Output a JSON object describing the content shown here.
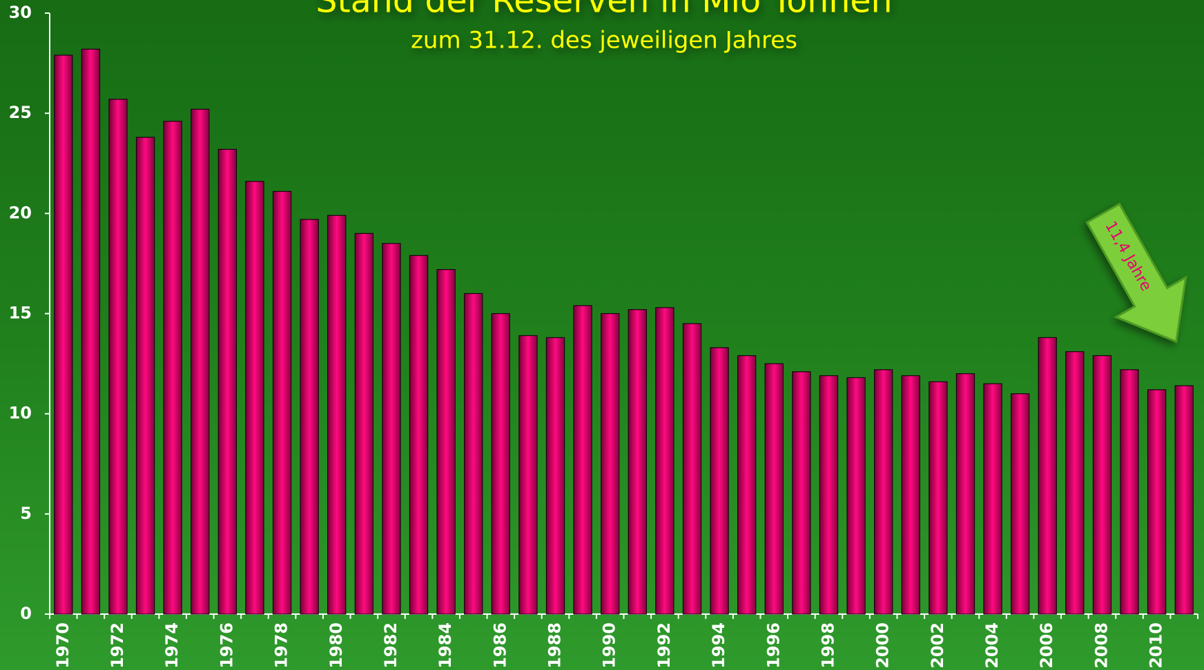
{
  "chart_data": {
    "type": "bar",
    "title": "Stand der Reserven in Mio Tonnen",
    "subtitle": "zum 31.12. des jeweiligen Jahres",
    "annotation": "11,4 Jahre",
    "categories": [
      "1970",
      null,
      "1972",
      null,
      "1974",
      null,
      "1976",
      null,
      "1978",
      null,
      "1980",
      null,
      "1982",
      null,
      "1984",
      null,
      "1986",
      null,
      "1988",
      null,
      "1990",
      null,
      "1992",
      null,
      "1994",
      null,
      "1996",
      null,
      "1998",
      null,
      "2000",
      null,
      "2002",
      null,
      "2004",
      null,
      "2006",
      null,
      "2008",
      null,
      "2010",
      null
    ],
    "values": [
      27.9,
      28.2,
      25.7,
      23.8,
      24.6,
      25.2,
      23.2,
      21.6,
      21.1,
      19.7,
      19.9,
      19.0,
      18.5,
      17.9,
      17.2,
      16.0,
      15.0,
      13.9,
      13.8,
      15.4,
      15.0,
      15.2,
      15.3,
      14.5,
      13.3,
      12.9,
      12.5,
      12.1,
      11.9,
      11.8,
      12.2,
      11.9,
      11.6,
      12.0,
      11.5,
      11.0,
      13.8,
      13.1,
      12.9,
      12.2,
      11.2,
      11.4
    ],
    "color": "#e8006e",
    "ylim": [
      0,
      30
    ],
    "yticks": [
      0,
      5,
      10,
      15,
      20,
      25,
      30
    ],
    "grid": false
  }
}
